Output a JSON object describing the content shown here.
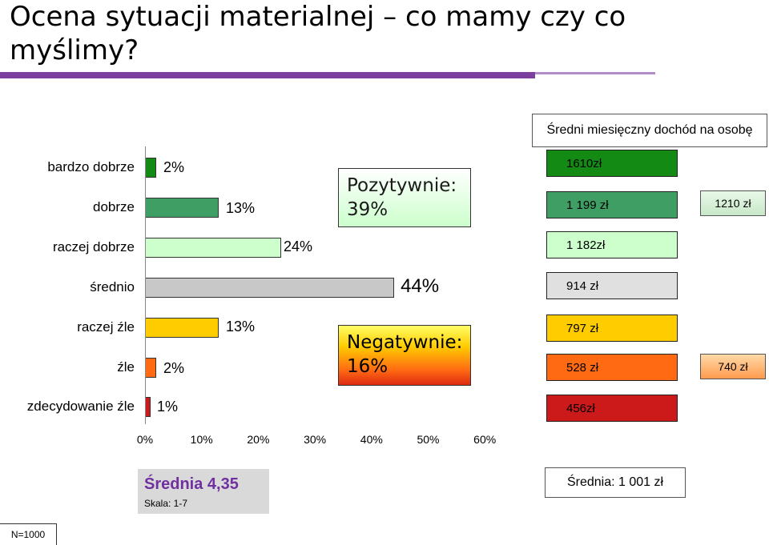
{
  "title": "Ocena sytuacji materialnej – co mamy czy co myślimy?",
  "income_header": "Średni miesięczny dochód na osobę",
  "positive_label": "Pozytywnie: 39%",
  "negative_label": "Negatywnie: 16%",
  "mean_label": "Średnia 4,35",
  "scale_label": "Skala: 1-7",
  "income_mean": "Średnia: 1 001 zł",
  "income_pos_group": "1210 zł",
  "income_neg_group": "740 zł",
  "sample": "N=1000",
  "chart_data": {
    "type": "bar",
    "orientation": "horizontal",
    "categories": [
      "bardzo dobrze",
      "dobrze",
      "raczej dobrze",
      "średnio",
      "raczej źle",
      "źle",
      "zdecydowanie źle"
    ],
    "values": [
      2,
      13,
      24,
      44,
      13,
      2,
      1
    ],
    "value_labels": [
      "2%",
      "13%",
      "24%",
      "44%",
      "13%",
      "2%",
      "1%"
    ],
    "colors": [
      "#138a13",
      "#3f9e63",
      "#ccffcc",
      "#c8c8c8",
      "#ffcc00",
      "#ff6a13",
      "#cc1a1a"
    ],
    "xlim": [
      0,
      60
    ],
    "xticks": [
      "0%",
      "10%",
      "20%",
      "30%",
      "40%",
      "50%",
      "60%"
    ],
    "income": [
      "1610zł",
      "1 199 zł",
      "1 182zł",
      "914 zł",
      "797 zł",
      "528 zł",
      "456zł"
    ],
    "income_colors": [
      "#138a13",
      "#3f9e63",
      "#ccffcc",
      "#e0e0e0",
      "#ffcc00",
      "#ff6a13",
      "#cc1a1a"
    ]
  }
}
